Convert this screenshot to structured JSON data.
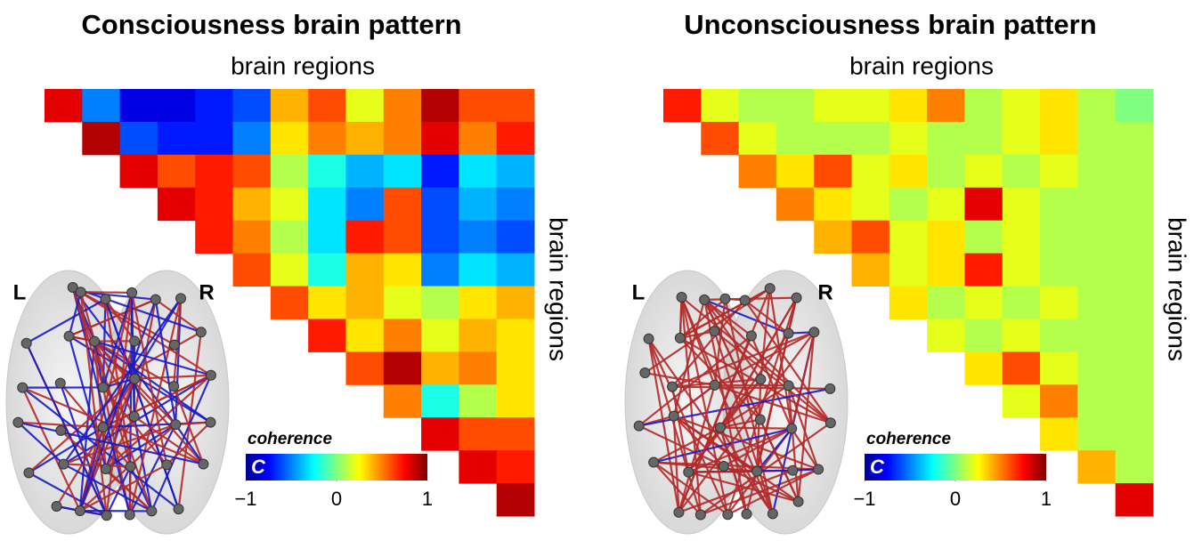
{
  "chart_data": [
    {
      "type": "heatmap",
      "title": "Consciousness brain pattern",
      "xlabel": "brain regions",
      "ylabel": "brain regions",
      "colormap": "jet",
      "clim": [
        -1,
        1
      ],
      "cticks": [
        {
          "value": -1,
          "label": "−1"
        },
        0,
        1
      ],
      "colorbar_label": "coherence",
      "colorbar_symbol": "C",
      "hemisphere_labels": [
        "L",
        "R"
      ],
      "matrix": [
        [
          0.8,
          -0.5,
          -0.8,
          -0.8,
          -0.7,
          -0.6,
          0.4,
          0.6,
          0.2,
          0.5,
          0.9,
          0.6,
          0.6
        ],
        [
          0.9,
          -0.6,
          -0.7,
          -0.7,
          -0.5,
          0.3,
          0.5,
          0.4,
          0.5,
          0.8,
          0.5,
          0.7
        ],
        [
          0.8,
          0.6,
          0.7,
          0.6,
          0.1,
          -0.2,
          -0.4,
          -0.3,
          -0.7,
          -0.3,
          -0.4
        ],
        [
          0.8,
          0.7,
          0.4,
          0.2,
          -0.3,
          -0.5,
          0.6,
          -0.6,
          -0.4,
          -0.5
        ],
        [
          0.7,
          0.5,
          0.1,
          -0.3,
          0.7,
          0.6,
          -0.6,
          -0.5,
          -0.6
        ],
        [
          0.6,
          0.2,
          -0.2,
          0.4,
          0.3,
          -0.5,
          -0.3,
          -0.4
        ],
        [
          0.6,
          0.3,
          0.4,
          0.2,
          0.1,
          0.3,
          0.4
        ],
        [
          0.7,
          0.3,
          0.5,
          0.2,
          0.4,
          0.3
        ],
        [
          0.6,
          0.9,
          0.4,
          0.5,
          0.3
        ],
        [
          0.5,
          -0.2,
          0.1,
          0.3
        ],
        [
          0.8,
          0.6,
          0.6
        ],
        [
          0.8,
          0.7
        ],
        [
          0.9
        ]
      ]
    },
    {
      "type": "heatmap",
      "title": "Unconsciousness brain pattern",
      "xlabel": "brain regions",
      "ylabel": "brain regions",
      "colormap": "jet",
      "clim": [
        -1,
        1
      ],
      "cticks": [
        {
          "value": -1,
          "label": "−1"
        },
        0,
        1
      ],
      "colorbar_label": "coherence",
      "colorbar_symbol": "C",
      "hemisphere_labels": [
        "L",
        "R"
      ],
      "matrix": [
        [
          0.7,
          0.2,
          0.1,
          0.1,
          0.2,
          0.2,
          0.3,
          0.5,
          0.1,
          0.2,
          0.3,
          0.1,
          0.0
        ],
        [
          0.6,
          0.2,
          0.1,
          0.1,
          0.1,
          0.2,
          0.1,
          0.1,
          0.2,
          0.3,
          0.1,
          0.1
        ],
        [
          0.5,
          0.3,
          0.6,
          0.2,
          0.3,
          0.1,
          0.2,
          0.1,
          0.2,
          0.1,
          0.1
        ],
        [
          0.5,
          0.3,
          0.2,
          0.1,
          0.2,
          0.8,
          0.2,
          0.1,
          0.1,
          0.1
        ],
        [
          0.4,
          0.6,
          0.2,
          0.3,
          0.1,
          0.2,
          0.1,
          0.1,
          0.1
        ],
        [
          0.4,
          0.2,
          0.3,
          0.7,
          0.2,
          0.1,
          0.1,
          0.1
        ],
        [
          0.3,
          0.1,
          0.2,
          0.1,
          0.2,
          0.1,
          0.1
        ],
        [
          0.2,
          0.1,
          0.2,
          0.1,
          0.1,
          0.1
        ],
        [
          0.3,
          0.6,
          0.2,
          0.1,
          0.1
        ],
        [
          0.2,
          0.5,
          0.1,
          0.1
        ],
        [
          0.3,
          0.1,
          0.1
        ],
        [
          0.4,
          0.1
        ],
        [
          0.8
        ]
      ]
    }
  ]
}
